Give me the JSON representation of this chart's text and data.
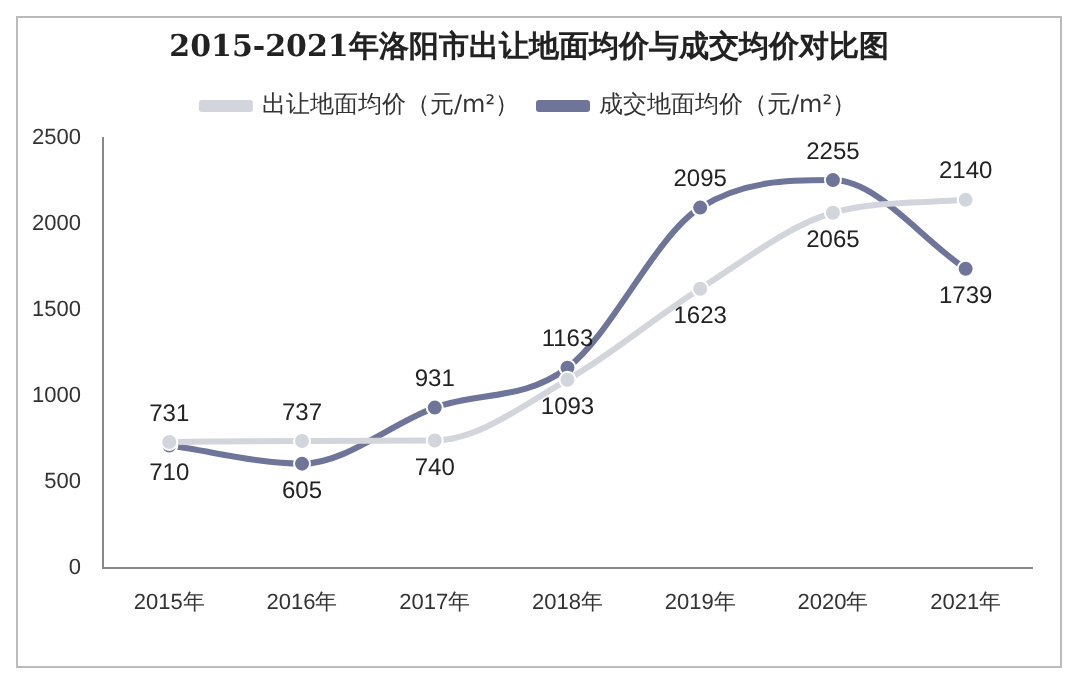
{
  "chart_data": {
    "type": "line",
    "title": "2015-2021年洛阳市出让地面均价与成交均价对比图",
    "categories": [
      "2015年",
      "2016年",
      "2017年",
      "2018年",
      "2019年",
      "2020年",
      "2021年"
    ],
    "series": [
      {
        "name": "出让地面均价（元/m²）",
        "color": "#d3d5dd",
        "values": [
          731,
          737,
          740,
          1093,
          1623,
          2065,
          2140
        ]
      },
      {
        "name": "成交地面均价（元/m²）",
        "color": "#6e7599",
        "values": [
          710,
          605,
          931,
          1163,
          2095,
          2255,
          1739
        ]
      }
    ],
    "ylim": [
      0,
      2500
    ],
    "yticks": [
      0,
      500,
      1000,
      1500,
      2000,
      2500
    ],
    "grid": false,
    "legend": "top",
    "marker": "circle",
    "data_labels": true
  }
}
